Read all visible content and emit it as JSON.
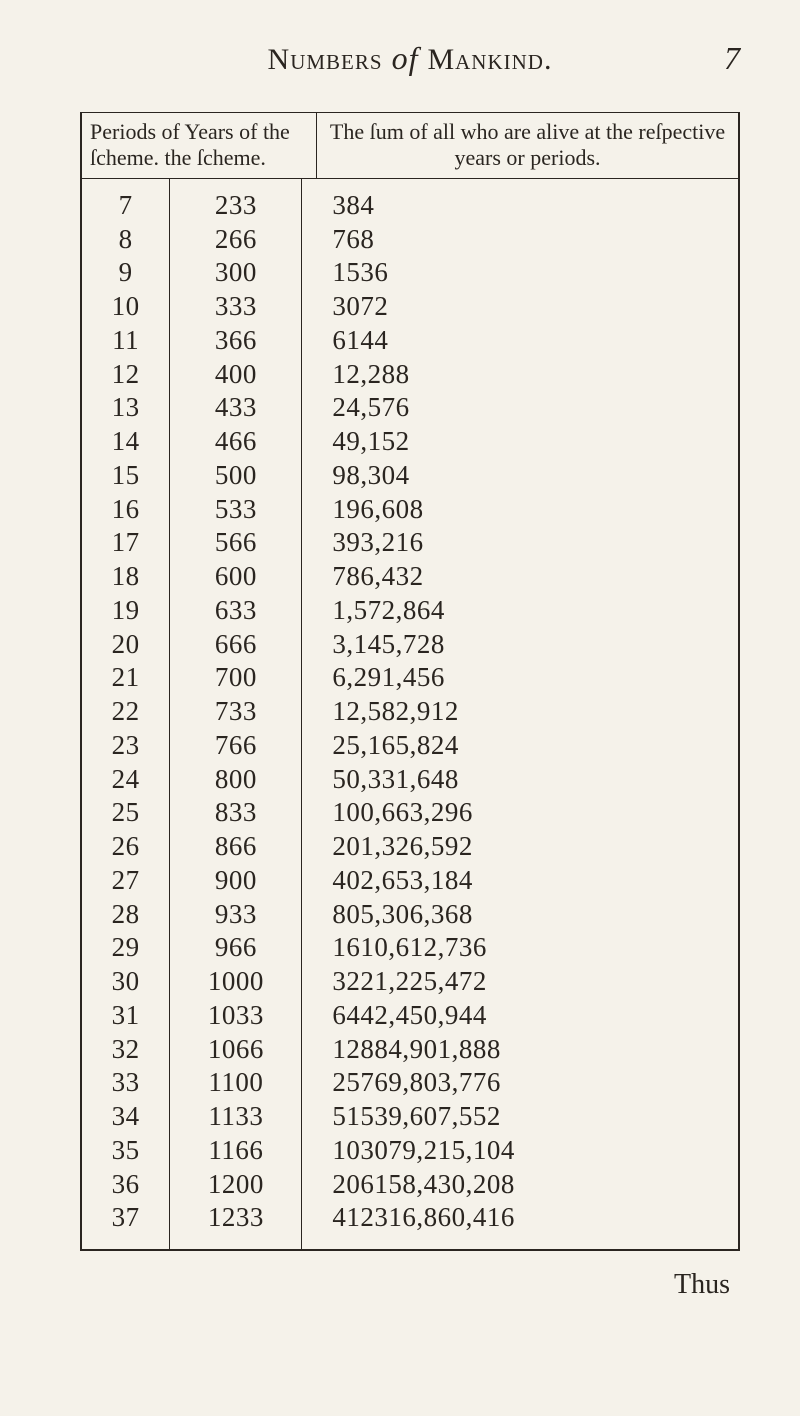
{
  "page_number": "7",
  "running_title_prefix": "Numbers",
  "running_title_italic": " of ",
  "running_title_suffix": "Mankind.",
  "header_left": "Periods of Years of the ſcheme. the ſcheme.",
  "header_right": "The ſum of all who are alive at the reſpective years or periods.",
  "catchword": "Thus",
  "rows": [
    {
      "p": "7",
      "y": "233",
      "s": "384"
    },
    {
      "p": "8",
      "y": "266",
      "s": "768"
    },
    {
      "p": "9",
      "y": "300",
      "s": "1536"
    },
    {
      "p": "10",
      "y": "333",
      "s": "3072"
    },
    {
      "p": "11",
      "y": "366",
      "s": "6144"
    },
    {
      "p": "12",
      "y": "400",
      "s": "12,288"
    },
    {
      "p": "13",
      "y": "433",
      "s": "24,576"
    },
    {
      "p": "14",
      "y": "466",
      "s": "49,152"
    },
    {
      "p": "15",
      "y": "500",
      "s": "98,304"
    },
    {
      "p": "16",
      "y": "533",
      "s": "196,608"
    },
    {
      "p": "17",
      "y": "566",
      "s": "393,216"
    },
    {
      "p": "18",
      "y": "600",
      "s": "786,432"
    },
    {
      "p": "19",
      "y": "633",
      "s": "1,572,864"
    },
    {
      "p": "20",
      "y": "666",
      "s": "3,145,728"
    },
    {
      "p": "21",
      "y": "700",
      "s": "6,291,456"
    },
    {
      "p": "22",
      "y": "733",
      "s": "12,582,912"
    },
    {
      "p": "23",
      "y": "766",
      "s": "25,165,824"
    },
    {
      "p": "24",
      "y": "800",
      "s": "50,331,648"
    },
    {
      "p": "25",
      "y": "833",
      "s": "100,663,296"
    },
    {
      "p": "26",
      "y": "866",
      "s": "201,326,592"
    },
    {
      "p": "27",
      "y": "900",
      "s": "402,653,184"
    },
    {
      "p": "28",
      "y": "933",
      "s": "805,306,368"
    },
    {
      "p": "29",
      "y": "966",
      "s": "1610,612,736"
    },
    {
      "p": "30",
      "y": "1000",
      "s": "3221,225,472"
    },
    {
      "p": "31",
      "y": "1033",
      "s": "6442,450,944"
    },
    {
      "p": "32",
      "y": "1066",
      "s": "12884,901,888"
    },
    {
      "p": "33",
      "y": "1100",
      "s": "25769,803,776"
    },
    {
      "p": "34",
      "y": "1133",
      "s": "51539,607,552"
    },
    {
      "p": "35",
      "y": "1166",
      "s": "103079,215,104"
    },
    {
      "p": "36",
      "y": "1200",
      "s": "206158,430,208"
    },
    {
      "p": "37",
      "y": "1233",
      "s": "412316,860,416"
    }
  ],
  "colors": {
    "background": "#f5f2ea",
    "ink": "#2a2520",
    "border": "#2a2520"
  },
  "typography": {
    "body_fontsize_pt": 20,
    "title_fontsize_pt": 24,
    "font_family": "Times New Roman / Caslon-like serif"
  }
}
